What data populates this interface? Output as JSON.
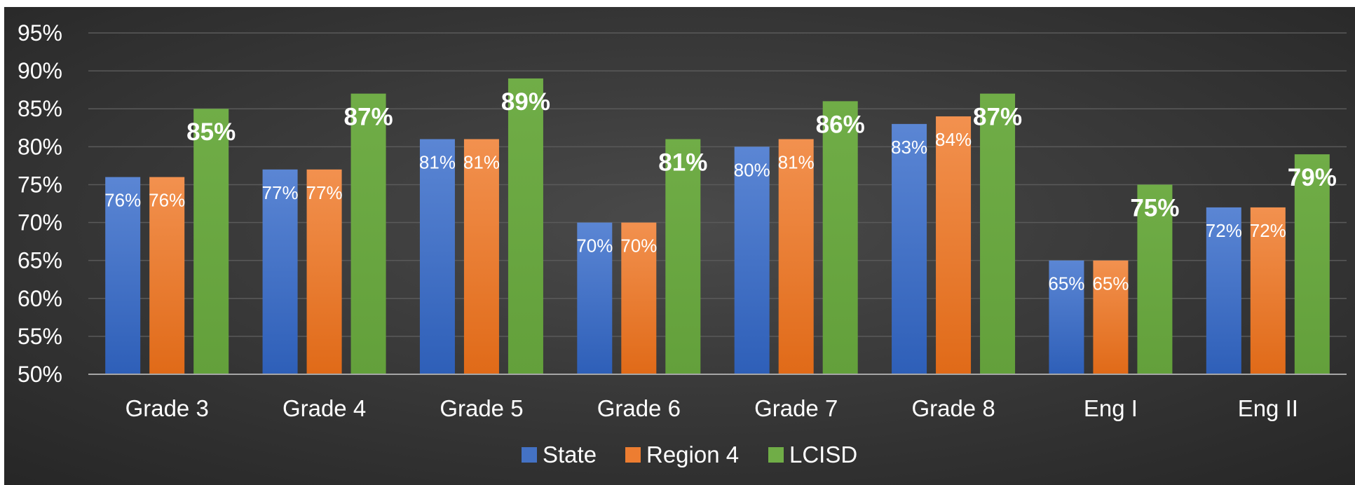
{
  "chart_data": {
    "type": "bar",
    "categories": [
      "Grade 3",
      "Grade 4",
      "Grade 5",
      "Grade 6",
      "Grade 7",
      "Grade 8",
      "Eng I",
      "Eng II"
    ],
    "series": [
      {
        "name": "State",
        "values": [
          76,
          77,
          81,
          70,
          80,
          83,
          65,
          72
        ],
        "labels": [
          "76%",
          "77%",
          "81%",
          "70%",
          "80%",
          "83%",
          "65%",
          "72%"
        ]
      },
      {
        "name": "Region 4",
        "values": [
          76,
          77,
          81,
          70,
          81,
          84,
          65,
          72
        ],
        "labels": [
          "76%",
          "77%",
          "81%",
          "70%",
          "81%",
          "84%",
          "65%",
          "72%"
        ]
      },
      {
        "name": "LCISD",
        "values": [
          85,
          87,
          89,
          81,
          86,
          87,
          75,
          79
        ],
        "labels": [
          "85%",
          "87%",
          "89%",
          "81%",
          "86%",
          "87%",
          "75%",
          "79%"
        ]
      }
    ],
    "yticks": [
      "50%",
      "55%",
      "60%",
      "65%",
      "70%",
      "75%",
      "80%",
      "85%",
      "90%",
      "95%"
    ],
    "ylim": [
      50,
      95
    ],
    "grid": true,
    "legend_position": "bottom",
    "colors": {
      "State": "#4472C4",
      "Region 4": "#ED7D31",
      "LCISD": "#70AD47",
      "background": "#404040",
      "gridline": "#5a5a5a",
      "axis": "#a6a6a6"
    }
  }
}
